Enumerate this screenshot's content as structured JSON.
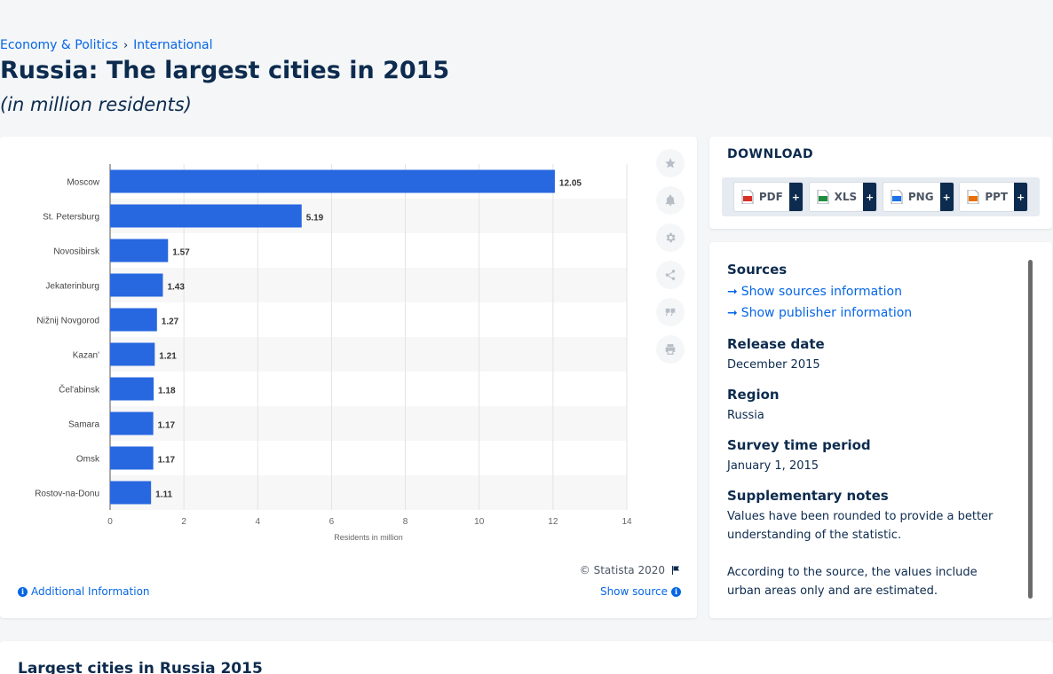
{
  "breadcrumb": {
    "items": [
      "Economy & Politics",
      "International"
    ],
    "separator": "›"
  },
  "title": "Russia: The largest cities in 2015",
  "subtitle": "(in million residents)",
  "chart_data": {
    "type": "bar",
    "orientation": "horizontal",
    "categories": [
      "Moscow",
      "St. Petersburg",
      "Novosibirsk",
      "Jekaterinburg",
      "Nižnij Novgorod",
      "Kazan'",
      "Čel'abinsk",
      "Samara",
      "Omsk",
      "Rostov-na-Donu"
    ],
    "values": [
      12.05,
      5.19,
      1.57,
      1.43,
      1.27,
      1.21,
      1.18,
      1.17,
      1.17,
      1.11
    ],
    "value_labels": [
      "12.05",
      "5.19",
      "1.57",
      "1.43",
      "1.27",
      "1.21",
      "1.18",
      "1.17",
      "1.17",
      "1.11"
    ],
    "xlabel": "Residents in million",
    "xlim": [
      0,
      14
    ],
    "xticks": [
      0,
      2,
      4,
      6,
      8,
      10,
      12,
      14
    ],
    "grid": true,
    "bar_color": "#2767e0"
  },
  "chart_footer": {
    "copyright": "© Statista 2020",
    "additional_info": "Additional Information",
    "show_source": "Show source"
  },
  "tools": [
    "star-icon",
    "bell-icon",
    "gear-icon",
    "share-icon",
    "quote-icon",
    "print-icon"
  ],
  "download": {
    "title": "DOWNLOAD",
    "buttons": [
      {
        "label": "PDF",
        "color": "#d93025"
      },
      {
        "label": "XLS",
        "color": "#1e8e3e"
      },
      {
        "label": "PNG",
        "color": "#1a73e8"
      },
      {
        "label": "PPT",
        "color": "#e8710a"
      }
    ],
    "plus": "+"
  },
  "meta": {
    "sources_heading": "Sources",
    "show_sources": "Show sources information",
    "show_publisher": "Show publisher information",
    "release_heading": "Release date",
    "release_value": "December 2015",
    "region_heading": "Region",
    "region_value": "Russia",
    "survey_heading": "Survey time period",
    "survey_value": "January 1, 2015",
    "notes_heading": "Supplementary notes",
    "notes_1": "Values have been rounded to provide a better understanding of the statistic.",
    "notes_2": "According to the source, the values include urban areas only and are estimated."
  },
  "bottom": {
    "title": "Largest cities in Russia 2015"
  }
}
